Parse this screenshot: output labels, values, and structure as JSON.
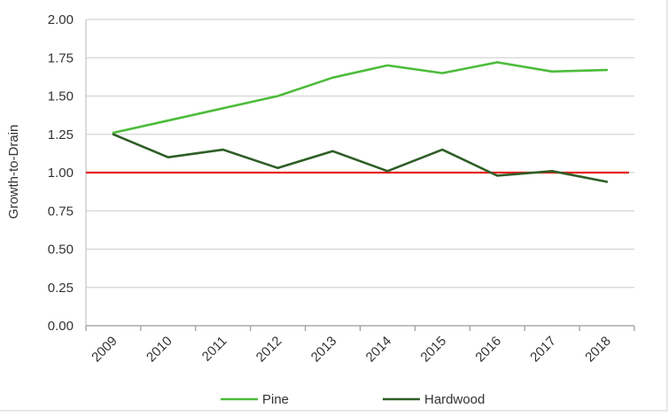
{
  "chart_data": {
    "type": "line",
    "title": "",
    "xlabel": "",
    "ylabel": "Growth-to-Drain",
    "categories": [
      "2009",
      "2010",
      "2011",
      "2012",
      "2013",
      "2014",
      "2015",
      "2016",
      "2017",
      "2018"
    ],
    "ylim": [
      0,
      2
    ],
    "yticks": [
      "0.00",
      "0.25",
      "0.50",
      "0.75",
      "1.00",
      "1.25",
      "1.50",
      "1.75",
      "2.00"
    ],
    "series": [
      {
        "name": "Pine",
        "color": "#4cbc3a",
        "values": [
          1.26,
          1.34,
          1.42,
          1.5,
          1.62,
          1.7,
          1.65,
          1.72,
          1.66,
          1.67
        ]
      },
      {
        "name": "Hardwood",
        "color": "#2e5e26",
        "values": [
          1.25,
          1.1,
          1.15,
          1.03,
          1.14,
          1.01,
          1.15,
          0.98,
          1.01,
          0.94
        ]
      }
    ],
    "reference_line": {
      "value": 1.0,
      "color": "#e41f1f"
    },
    "grid": true,
    "legend": "bottom"
  }
}
